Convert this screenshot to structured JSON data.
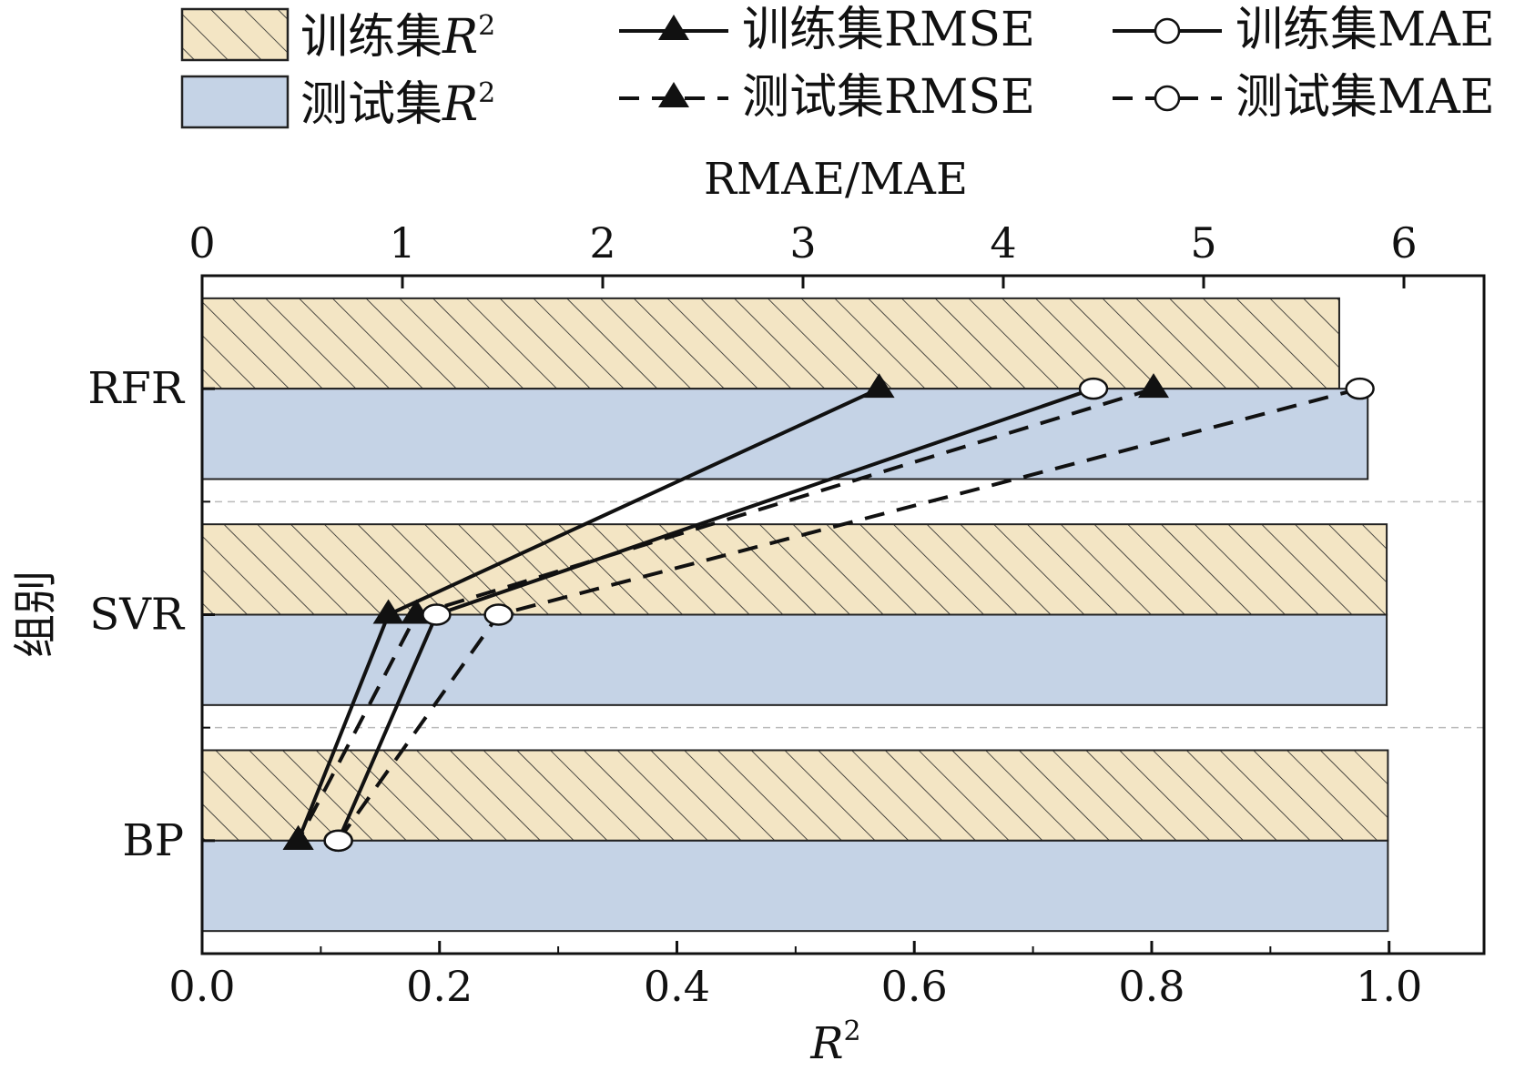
{
  "chart_data": {
    "type": "bar",
    "orientation": "horizontal",
    "categories": [
      "RFR",
      "SVR",
      "BP"
    ],
    "bar_series": [
      {
        "name": "训练集R²",
        "legend_base": "训练集",
        "legend_var": "R",
        "legend_sup": "2",
        "values": [
          0.958,
          0.998,
          0.999
        ],
        "fill": "#f3e5c4",
        "hatch": true
      },
      {
        "name": "测试集R²",
        "legend_base": "测试集",
        "legend_var": "R",
        "legend_sup": "2",
        "values": [
          0.982,
          0.998,
          0.999
        ],
        "fill": "#c5d3e6",
        "hatch": false
      }
    ],
    "line_series": [
      {
        "name": "训练集RMSE",
        "marker": "triangle",
        "dash": false,
        "values": [
          3.38,
          0.93,
          0.48
        ]
      },
      {
        "name": "测试集RMSE",
        "marker": "triangle",
        "dash": true,
        "values": [
          4.75,
          1.07,
          0.48
        ]
      },
      {
        "name": "训练集MAE",
        "marker": "circle",
        "dash": false,
        "values": [
          4.45,
          1.17,
          0.68
        ]
      },
      {
        "name": "测试集MAE",
        "marker": "circle",
        "dash": true,
        "values": [
          5.78,
          1.48,
          0.68
        ]
      }
    ],
    "x_bottom": {
      "label_var": "R",
      "label_sup": "2",
      "lim": [
        0,
        1.08
      ],
      "ticks": [
        "0.0",
        "0.2",
        "0.4",
        "0.6",
        "0.8",
        "1.0"
      ],
      "tick_values": [
        0,
        0.2,
        0.4,
        0.6,
        0.8,
        1.0
      ]
    },
    "x_top": {
      "label": "RMAE/MAE",
      "lim": [
        0,
        6.4
      ],
      "ticks": [
        "0",
        "1",
        "2",
        "3",
        "4",
        "5",
        "6"
      ],
      "tick_values": [
        0,
        1,
        2,
        3,
        4,
        5,
        6
      ]
    },
    "y_label": "组别",
    "legend_position": "top",
    "grid": "dashed separators between groups"
  }
}
